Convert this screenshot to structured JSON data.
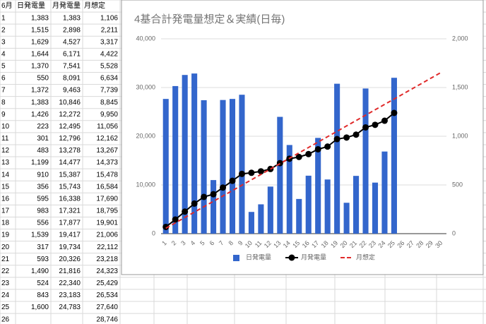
{
  "table": {
    "header": [
      "6月",
      "日発電量",
      "月発電量",
      "月想定"
    ],
    "rows": [
      [
        "1",
        "1,383",
        "1,383",
        "1,106"
      ],
      [
        "2",
        "1,515",
        "2,898",
        "2,211"
      ],
      [
        "3",
        "1,629",
        "4,527",
        "3,317"
      ],
      [
        "4",
        "1,644",
        "6,171",
        "4,422"
      ],
      [
        "5",
        "1,370",
        "7,541",
        "5,528"
      ],
      [
        "6",
        "550",
        "8,091",
        "6,634"
      ],
      [
        "7",
        "1,372",
        "9,463",
        "7,739"
      ],
      [
        "8",
        "1,383",
        "10,846",
        "8,845"
      ],
      [
        "9",
        "1,426",
        "12,272",
        "9,950"
      ],
      [
        "10",
        "223",
        "12,495",
        "11,056"
      ],
      [
        "11",
        "301",
        "12,796",
        "12,162"
      ],
      [
        "12",
        "483",
        "13,278",
        "13,267"
      ],
      [
        "13",
        "1,199",
        "14,477",
        "14,373"
      ],
      [
        "14",
        "910",
        "15,387",
        "15,478"
      ],
      [
        "15",
        "356",
        "15,743",
        "16,584"
      ],
      [
        "16",
        "595",
        "16,338",
        "17,690"
      ],
      [
        "17",
        "983",
        "17,321",
        "18,795"
      ],
      [
        "18",
        "556",
        "17,877",
        "19,901"
      ],
      [
        "19",
        "1,539",
        "19,417",
        "21,006"
      ],
      [
        "20",
        "317",
        "19,734",
        "22,112"
      ],
      [
        "21",
        "593",
        "20,326",
        "23,218"
      ],
      [
        "22",
        "1,490",
        "21,816",
        "24,323"
      ],
      [
        "23",
        "524",
        "22,340",
        "25,429"
      ],
      [
        "24",
        "843",
        "23,183",
        "26,534"
      ],
      [
        "25",
        "1,600",
        "24,783",
        "27,640"
      ],
      [
        "26",
        null,
        null,
        "28,746"
      ]
    ]
  },
  "chart_data": {
    "type": "combo",
    "title": "4基合計発電量想定＆実績(日毎)",
    "categories": [
      "1",
      "2",
      "3",
      "4",
      "5",
      "6",
      "7",
      "8",
      "9",
      "10",
      "11",
      "12",
      "13",
      "14",
      "15",
      "16",
      "17",
      "18",
      "19",
      "20",
      "21",
      "22",
      "23",
      "24",
      "25",
      "26",
      "27",
      "28",
      "29",
      "30"
    ],
    "series": [
      {
        "name": "日発電量",
        "type": "bar",
        "axis": "y2",
        "color": "#3366cc",
        "values": [
          1383,
          1515,
          1629,
          1644,
          1370,
          550,
          1372,
          1383,
          1426,
          223,
          301,
          483,
          1199,
          910,
          356,
          595,
          983,
          556,
          1539,
          317,
          593,
          1490,
          524,
          843,
          1600,
          null,
          null,
          null,
          null,
          null
        ]
      },
      {
        "name": "月発電量",
        "type": "line",
        "color": "#000000",
        "values": [
          1383,
          2898,
          4527,
          6171,
          7541,
          8091,
          9463,
          10846,
          12272,
          12495,
          12796,
          13278,
          14477,
          15387,
          15743,
          16338,
          17321,
          17877,
          19417,
          19734,
          20326,
          21816,
          22340,
          23183,
          24783,
          null,
          null,
          null,
          null,
          null
        ]
      },
      {
        "name": "月想定",
        "type": "dashed",
        "color": "#e02a2a",
        "values": [
          1106,
          2211,
          3317,
          4422,
          5528,
          6634,
          7739,
          8845,
          9950,
          11056,
          12162,
          13267,
          14373,
          15478,
          16584,
          17690,
          18795,
          19901,
          21006,
          22112,
          23218,
          24323,
          25429,
          26534,
          27640,
          28746,
          29852,
          30957,
          32063,
          33169
        ]
      }
    ],
    "ylim": [
      0,
      40000
    ],
    "yticks": [
      0,
      {
        "value": 10000,
        "label": "10,000"
      },
      {
        "value": 20000,
        "label": "20,000"
      },
      {
        "value": 30000,
        "label": "30,000"
      },
      {
        "value": 40000,
        "label": "40,000"
      }
    ],
    "y2lim": [
      0,
      2000
    ],
    "y2ticks": [
      0,
      500,
      {
        "value": 1000,
        "label": "1,000"
      },
      {
        "value": 1500,
        "label": "1,500"
      },
      {
        "value": 2000,
        "label": "2,000"
      }
    ],
    "grid": true,
    "legend": "bottom"
  }
}
